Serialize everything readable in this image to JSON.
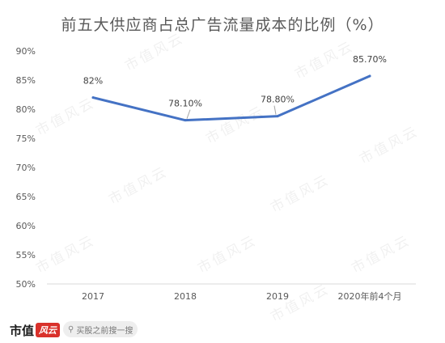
{
  "chart_data": {
    "type": "line",
    "title": "前五大供应商占总广告流量成本的比例（%）",
    "categories": [
      "2017",
      "2018",
      "2019",
      "2020年前4个月"
    ],
    "series": [
      {
        "values": [
          82.0,
          78.1,
          78.8,
          85.7
        ]
      }
    ],
    "data_labels": [
      "82%",
      "78.10%",
      "78.80%",
      "85.70%"
    ],
    "y_ticks": [
      "50%",
      "55%",
      "60%",
      "65%",
      "70%",
      "75%",
      "80%",
      "85%",
      "90%"
    ],
    "ylim": [
      50,
      90
    ],
    "grid": false,
    "legend": "none",
    "line_color": "#4472c4"
  },
  "watermark": "市值风云",
  "footer": {
    "brand": "市值",
    "brand_mark": "风云",
    "search_placeholder": "买股之前搜一搜"
  }
}
